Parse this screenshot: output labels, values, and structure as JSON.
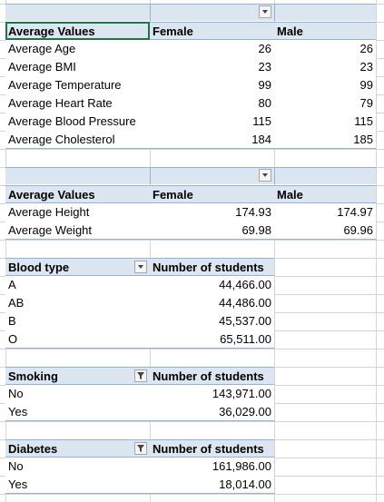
{
  "pivot1": {
    "header_row": [
      "Average Values",
      "Female",
      "Male"
    ],
    "rows": [
      {
        "label": "Average  Age",
        "female": "26",
        "male": "26"
      },
      {
        "label": "Average  BMI",
        "female": "23",
        "male": "23"
      },
      {
        "label": "Average  Temperature",
        "female": "99",
        "male": "99"
      },
      {
        "label": "Average  Heart Rate",
        "female": "80",
        "male": "79"
      },
      {
        "label": "Average  Blood Pressure",
        "female": "115",
        "male": "115"
      },
      {
        "label": "Average Cholesterol",
        "female": "184",
        "male": "185"
      }
    ]
  },
  "pivot2": {
    "header_row": [
      "Average Values",
      "Female",
      "Male"
    ],
    "rows": [
      {
        "label": "Average  Height",
        "female": "174.93",
        "male": "174.97"
      },
      {
        "label": "Average  Weight",
        "female": "69.98",
        "male": "69.96"
      }
    ]
  },
  "blood": {
    "header": "Blood type",
    "value_header": "Number of students",
    "rows": [
      {
        "label": "A",
        "value": "44,466.00"
      },
      {
        "label": "AB",
        "value": "44,486.00"
      },
      {
        "label": "B",
        "value": "45,537.00"
      },
      {
        "label": "O",
        "value": "65,511.00"
      }
    ]
  },
  "smoking": {
    "header": "Smoking",
    "value_header": "Number of students",
    "rows": [
      {
        "label": "No",
        "value": "143,971.00"
      },
      {
        "label": "Yes",
        "value": "36,029.00"
      }
    ]
  },
  "diabetes": {
    "header": "Diabetes",
    "value_header": "Number of students",
    "rows": [
      {
        "label": "No",
        "value": "161,986.00"
      },
      {
        "label": "Yes",
        "value": "18,014.00"
      }
    ]
  },
  "colors": {
    "header_fill": "#dce6f1",
    "border": "#95b3d7",
    "gridline": "#d4d4d4",
    "selection": "#217346"
  }
}
